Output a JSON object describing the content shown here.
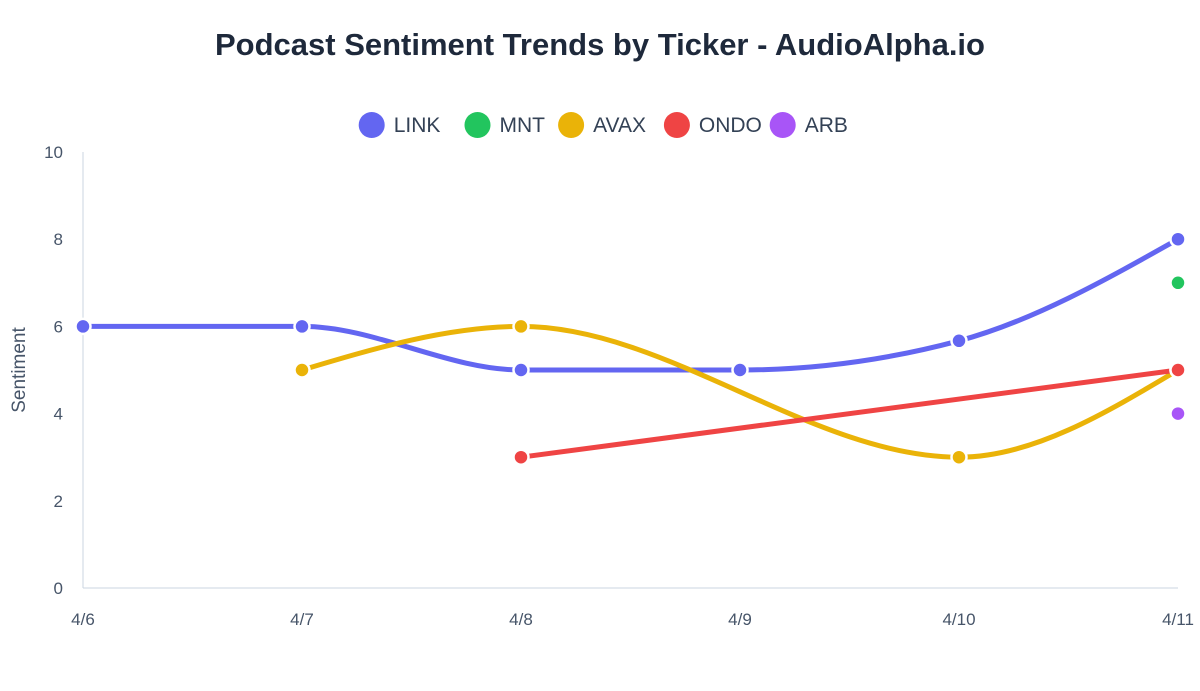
{
  "chart_data": {
    "type": "line",
    "title": "Podcast Sentiment Trends by Ticker - AudioAlpha.io",
    "xlabel": "",
    "ylabel": "Sentiment",
    "categories": [
      "4/6",
      "4/7",
      "4/8",
      "4/9",
      "4/10",
      "4/11"
    ],
    "ylim": [
      0,
      10
    ],
    "yticks": [
      0,
      2,
      4,
      6,
      8,
      10
    ],
    "grid": false,
    "legend_position": "top-center",
    "series": [
      {
        "name": "LINK",
        "color": "#6366f1",
        "values": [
          6,
          6,
          5,
          5,
          5.67,
          8
        ]
      },
      {
        "name": "MNT",
        "color": "#22c55e",
        "values": [
          null,
          null,
          null,
          null,
          null,
          7
        ]
      },
      {
        "name": "AVAX",
        "color": "#eab308",
        "values": [
          null,
          5,
          6,
          null,
          3,
          5
        ]
      },
      {
        "name": "ONDO",
        "color": "#ef4444",
        "values": [
          null,
          null,
          3,
          null,
          null,
          5
        ]
      },
      {
        "name": "ARB",
        "color": "#a855f7",
        "values": [
          null,
          null,
          null,
          null,
          null,
          4
        ]
      }
    ]
  }
}
